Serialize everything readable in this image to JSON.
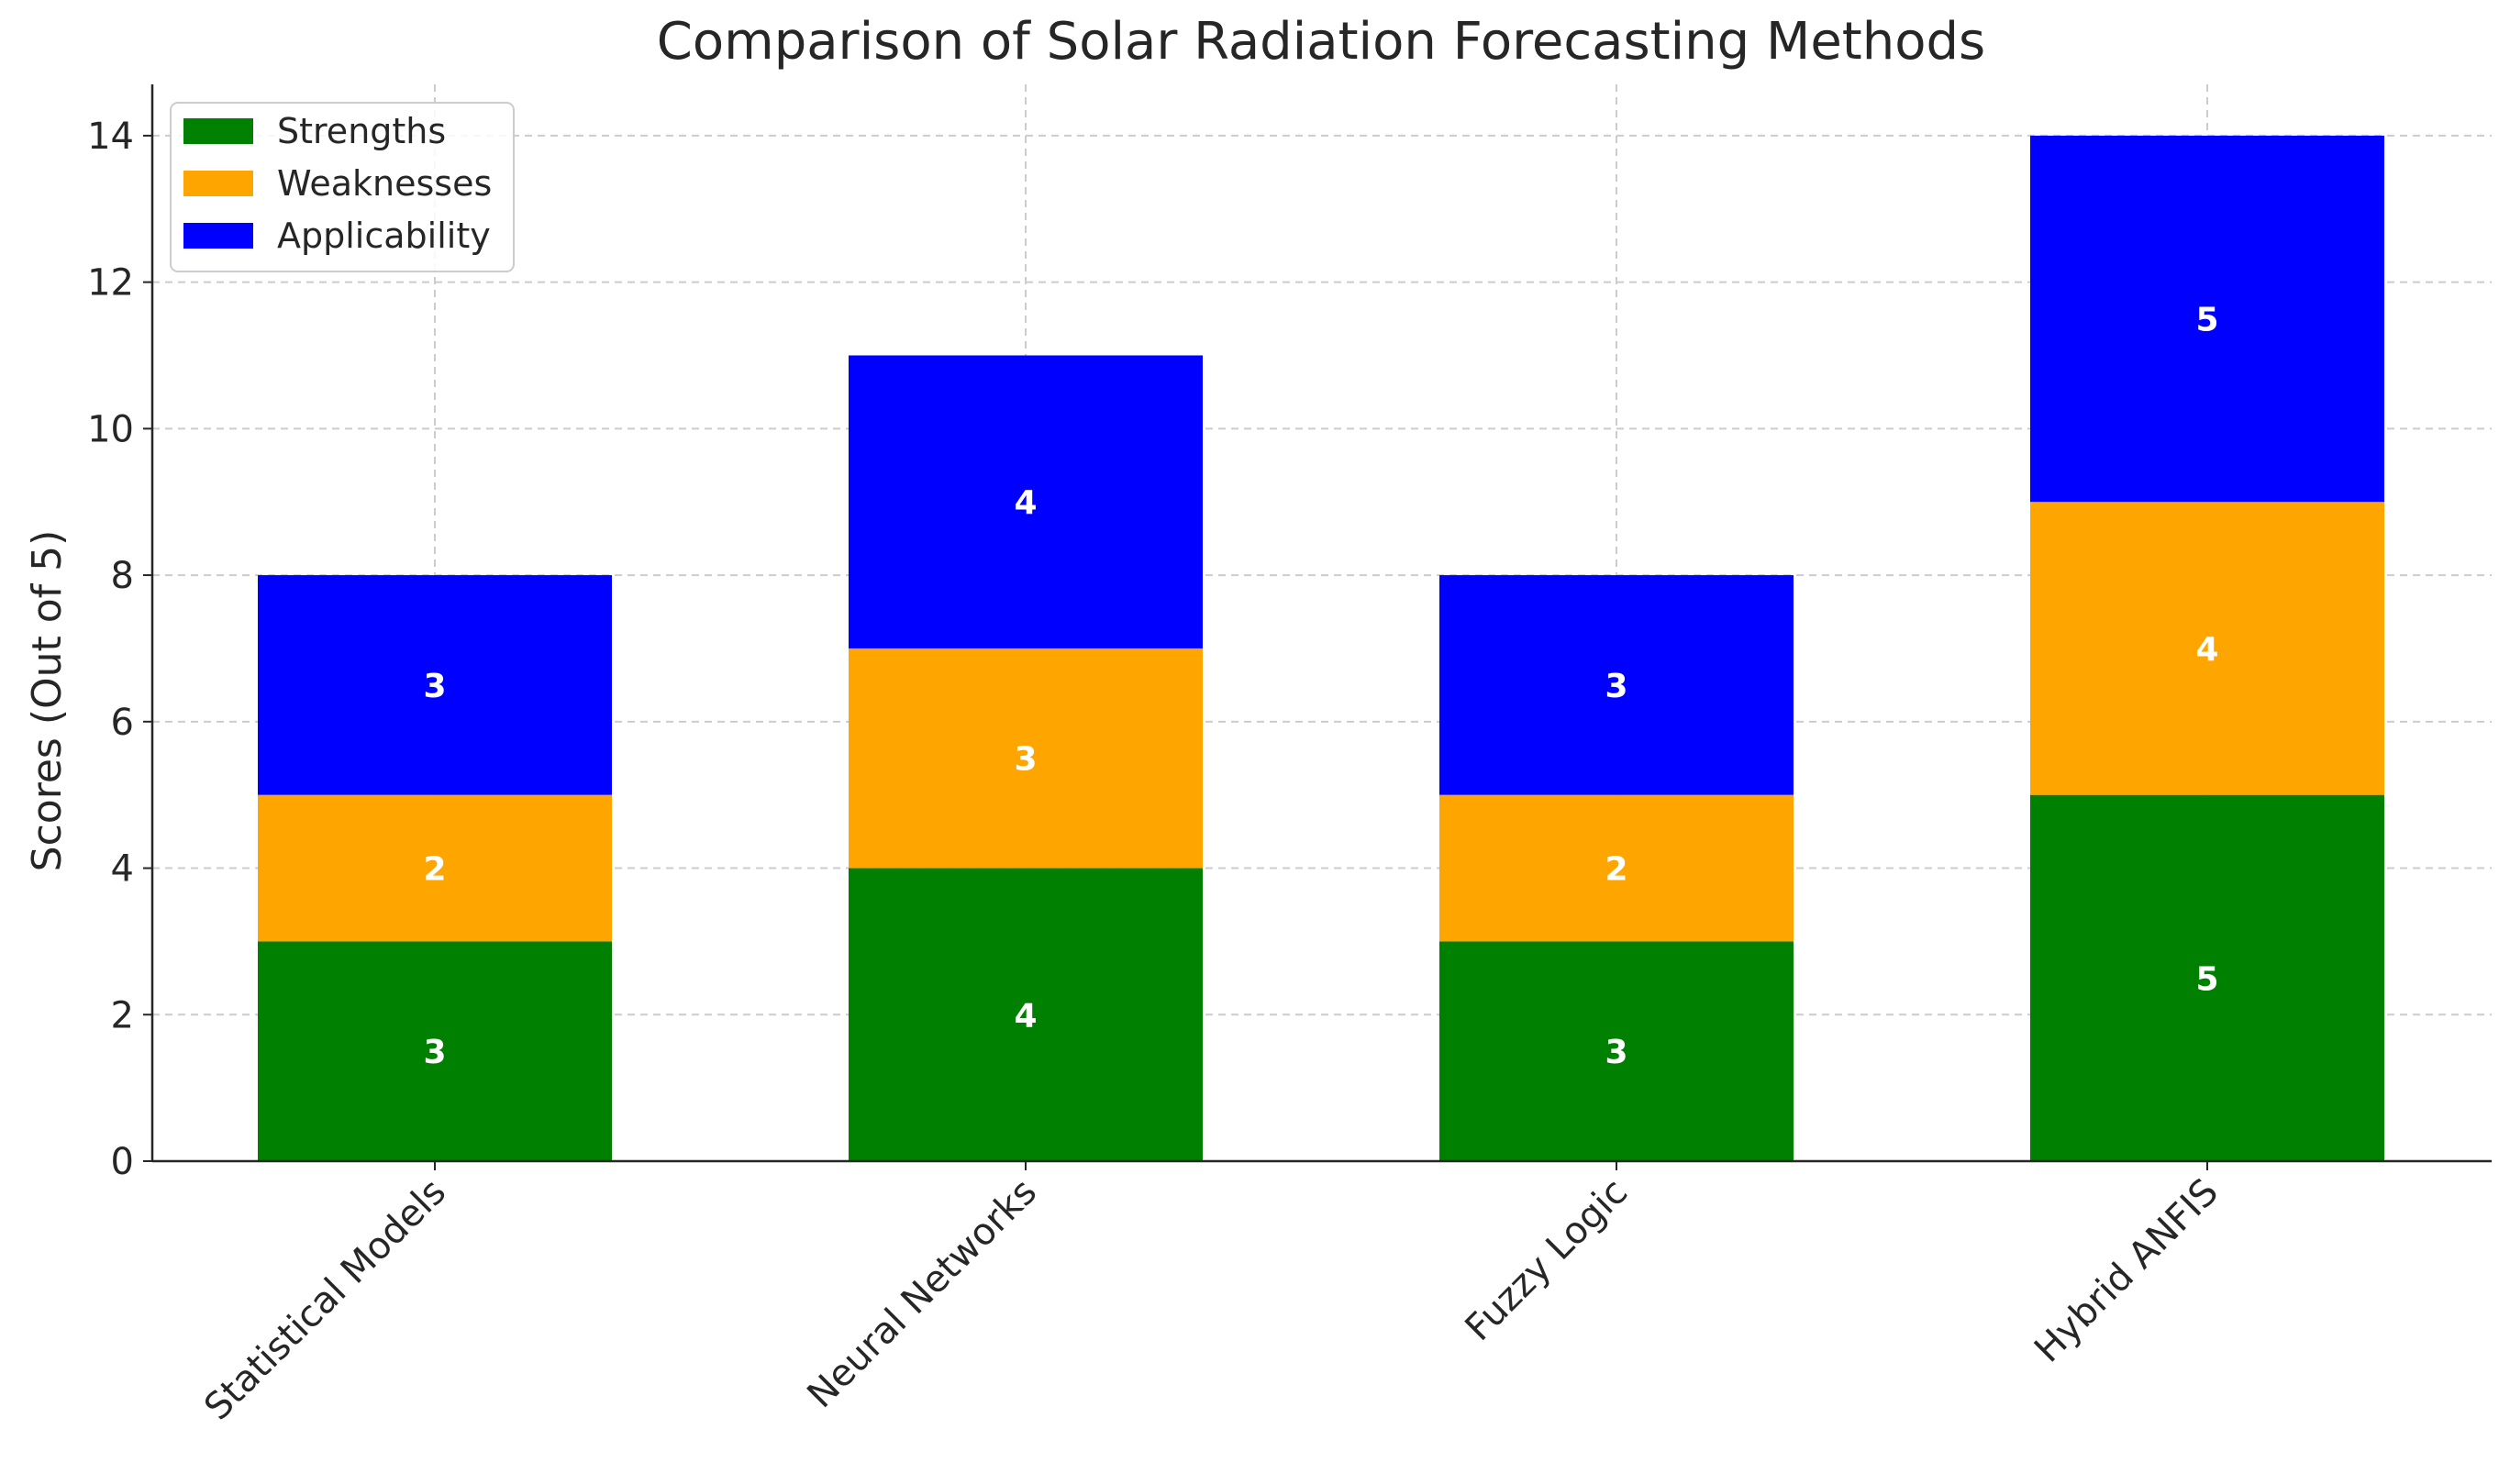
{
  "chart_data": {
    "type": "bar",
    "stacked": true,
    "title": "Comparison of Solar Radiation Forecasting Methods",
    "xlabel": "",
    "ylabel": "Scores (Out of 5)",
    "ylim": [
      0,
      14.7
    ],
    "yticks": [
      0,
      2,
      4,
      6,
      8,
      10,
      12,
      14
    ],
    "grid": true,
    "legend_position": "top-left",
    "categories": [
      "Statistical Models",
      "Neural Networks",
      "Fuzzy Logic",
      "Hybrid ANFIS"
    ],
    "series": [
      {
        "name": "Strengths",
        "color": "#008000",
        "values": [
          3,
          4,
          3,
          5
        ]
      },
      {
        "name": "Weaknesses",
        "color": "#FFA500",
        "values": [
          2,
          3,
          2,
          4
        ]
      },
      {
        "name": "Applicability",
        "color": "#0000FF",
        "values": [
          3,
          4,
          3,
          5
        ]
      }
    ]
  }
}
